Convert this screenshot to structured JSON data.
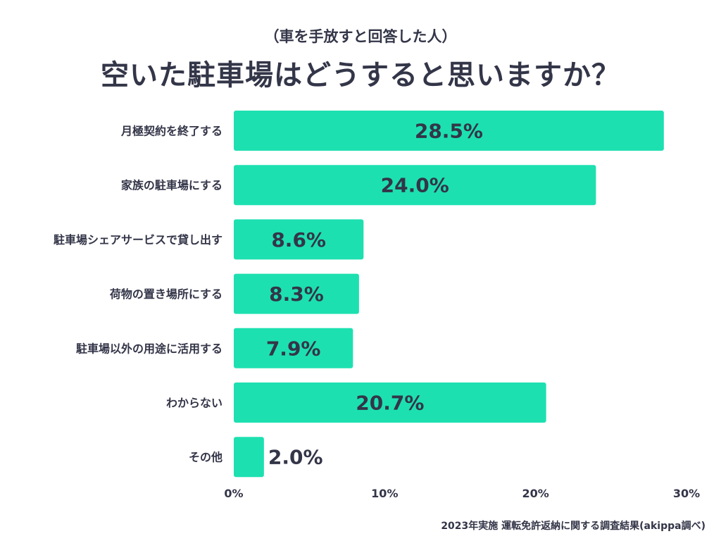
{
  "subtitle": "（車を手放すと回答した人）",
  "title": "空いた駐車場はどうすると思いますか？",
  "footer": "2023年実施 運転免許返納に関する調査結果(akippa調べ)",
  "colors": {
    "bar": "#1de0b0",
    "text": "#333548"
  },
  "chart_data": {
    "type": "bar",
    "orientation": "horizontal",
    "categories": [
      "月極契約を終了する",
      "家族の駐車場にする",
      "駐車場シェアサービスで貸し出す",
      "荷物の置き場所にする",
      "駐車場以外の用途に活用する",
      "わからない",
      "その他"
    ],
    "values": [
      28.5,
      24.0,
      8.6,
      8.3,
      7.9,
      20.7,
      2.0
    ],
    "value_labels": [
      "28.5%",
      "24.0%",
      "8.6%",
      "8.3%",
      "7.9%",
      "20.7%",
      "2.0%"
    ],
    "xlim": [
      0,
      30
    ],
    "xticks": [
      0,
      10,
      20,
      30
    ],
    "xtick_labels": [
      "0%",
      "10%",
      "20%",
      "30%"
    ],
    "title": "空いた駐車場はどうすると思いますか？",
    "xlabel": "",
    "ylabel": "",
    "grid": false,
    "legend": "none"
  }
}
